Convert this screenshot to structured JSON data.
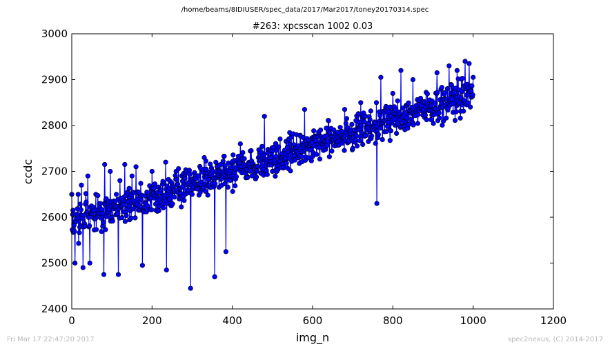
{
  "suptitle": "/home/beams/8IDIUSER/spec_data/2017/Mar2017/toney20170314.spec",
  "footer": {
    "left": "Fri Mar 17 22:47:20 2017",
    "right": "spec2nexus, (C) 2014-2017"
  },
  "chart_data": {
    "type": "line",
    "title": "#263: xpcsscan 1002 0.03",
    "xlabel": "img_n",
    "ylabel": "ccdc",
    "xlim": [
      0,
      1200
    ],
    "ylim": [
      2400,
      3000
    ],
    "xticks": [
      0,
      200,
      400,
      600,
      800,
      1000,
      1200
    ],
    "yticks": [
      2400,
      2500,
      2600,
      2700,
      2800,
      2900,
      3000
    ],
    "marker": "circle",
    "line_color": "#0000ff",
    "marker_edge": "#000000",
    "grid": false,
    "n_points": 1000,
    "trend": {
      "start": 2590,
      "end": 2870
    },
    "noise_amplitude": 55,
    "series": [
      {
        "x": [
          0,
          8,
          16,
          24,
          28,
          33,
          40,
          45,
          60,
          80,
          82,
          96,
          100,
          116,
          120,
          132,
          150,
          160,
          176,
          200,
          234,
          236,
          260,
          296,
          300,
          330,
          356,
          360,
          384,
          420,
          480,
          500,
          560,
          580,
          620,
          680,
          700,
          720,
          760,
          770,
          800,
          820,
          850,
          880,
          910,
          940,
          960,
          980,
          990,
          1000
        ],
        "y": [
          2650,
          2500,
          2650,
          2670,
          2490,
          2580,
          2690,
          2500,
          2650,
          2475,
          2715,
          2700,
          2600,
          2475,
          2680,
          2715,
          2690,
          2710,
          2495,
          2700,
          2720,
          2485,
          2700,
          2445,
          2650,
          2730,
          2470,
          2700,
          2525,
          2760,
          2820,
          2700,
          2780,
          2835,
          2790,
          2835,
          2750,
          2850,
          2630,
          2905,
          2870,
          2920,
          2900,
          2850,
          2915,
          2930,
          2920,
          2940,
          2935,
          2905
        ]
      }
    ]
  }
}
